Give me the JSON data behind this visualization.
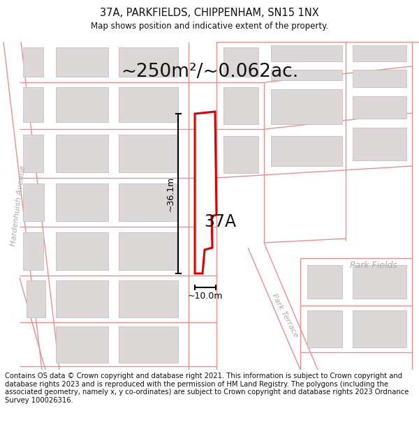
{
  "title": "37A, PARKFIELDS, CHIPPENHAM, SN15 1NX",
  "subtitle": "Map shows position and indicative extent of the property.",
  "area_text": "~250m²/~0.062ac.",
  "label_37a": "37A",
  "dim_height": "~36.1m",
  "dim_width": "~10.0m",
  "street_hardenhuish": "Hardenhuish Avenue",
  "street_park_terrace": "Park Terrace",
  "street_park_fields": "Park Fields",
  "footer": "Contains OS data © Crown copyright and database right 2021. This information is subject to Crown copyright and database rights 2023 and is reproduced with the permission of HM Land Registry. The polygons (including the associated geometry, namely x, y co-ordinates) are subject to Crown copyright and database rights 2023 Ordnance Survey 100026316.",
  "bg_color": "#ffffff",
  "map_bg": "#faf5f5",
  "building_color": "#ddd8d8",
  "building_edge": "#ccbcbc",
  "road_line_color": "#e89090",
  "highlight_color": "#dd0000",
  "highlight_fill": "#ffffff",
  "title_fontsize": 10.5,
  "subtitle_fontsize": 8.5,
  "area_fontsize": 19,
  "label_fontsize": 17,
  "dim_fontsize": 9,
  "street_fontsize": 8,
  "footer_fontsize": 7.2
}
